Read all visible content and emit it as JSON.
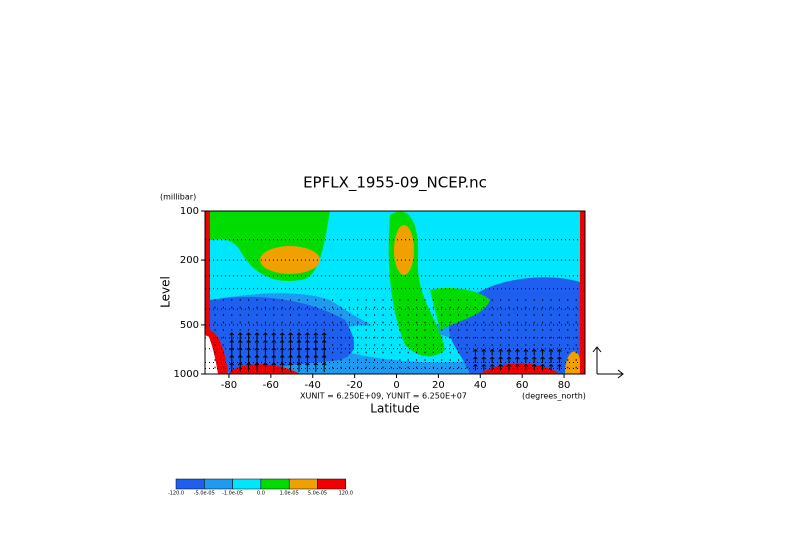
{
  "chart_data": {
    "type": "contour",
    "title": "EPFLX_1955-09_NCEP.nc",
    "xlabel": "Latitude",
    "ylabel": "Level",
    "xunit_label": "(degrees_north)",
    "yunit_label": "(millibar)",
    "annotation": "XUNIT = 6.250E+09, YUNIT = 6.250E+07",
    "xlim": [
      -90,
      90
    ],
    "xticks": [
      -80,
      -60,
      -40,
      -20,
      0,
      20,
      40,
      60,
      80
    ],
    "ylim": [
      1000,
      100
    ],
    "yticks": [
      100,
      200,
      500,
      1000
    ],
    "ylog": true,
    "ygrid": [
      100,
      150,
      200,
      250,
      300,
      400,
      500,
      600,
      700,
      850,
      925,
      1000
    ],
    "colorbar": {
      "colors": [
        "#1e5ff0",
        "#1e9bf0",
        "#00e6ff",
        "#00dc00",
        "#f0a000",
        "#f00000"
      ],
      "labels": [
        "-120.0",
        "-5.0e-05",
        "-1.0e-05",
        "0.0",
        "1.0e-05",
        "5.0e-05",
        "120.0"
      ]
    }
  }
}
